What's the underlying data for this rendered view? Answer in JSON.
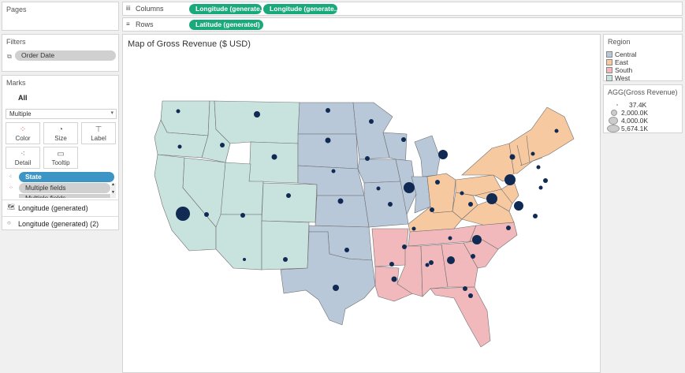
{
  "pages": {
    "title": "Pages"
  },
  "columns": {
    "label": "Columns",
    "pills": [
      "Longitude (generate..",
      "Longitude (generate.."
    ]
  },
  "rows": {
    "label": "Rows",
    "pills": [
      "Latitude (generated)"
    ]
  },
  "filters": {
    "title": "Filters",
    "items": [
      "Order Date"
    ]
  },
  "marks": {
    "title": "Marks",
    "all": "All",
    "mark_type": "Multiple",
    "buttons": {
      "color": "Color",
      "size": "Size",
      "label": "Label",
      "detail": "Detail",
      "tooltip": "Tooltip"
    },
    "fields": [
      "State",
      "Multiple fields",
      "Multiple fields"
    ],
    "layers": [
      "Longitude (generated)",
      "Longitude (generated) (2)"
    ]
  },
  "view": {
    "title": "Map of Gross Revenue ($ USD)"
  },
  "region_legend": {
    "title": "Region",
    "items": [
      {
        "label": "Central",
        "color": "#b9c8d9"
      },
      {
        "label": "East",
        "color": "#f7c9a1"
      },
      {
        "label": "South",
        "color": "#f2b9bd"
      },
      {
        "label": "West",
        "color": "#c8e2dd"
      }
    ]
  },
  "size_legend": {
    "title": "AGG(Gross Revenue)",
    "items": [
      "37.4K",
      "2,000.0K",
      "4,000.0K",
      "5,674.1K"
    ]
  },
  "colors": {
    "central": "#b9c8d9",
    "east": "#f7c9a1",
    "south": "#f2b9bd",
    "west": "#c8e2dd",
    "dot": "#102a54",
    "pill_green": "#1aa97a",
    "pill_blue": "#3d95c5"
  }
}
